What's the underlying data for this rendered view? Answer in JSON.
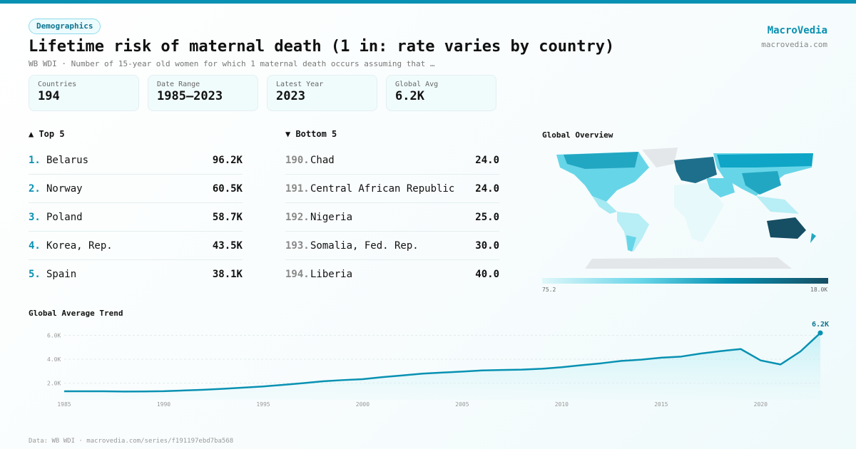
{
  "header": {
    "tag": "Demographics",
    "title": "Lifetime risk of maternal death (1 in: rate varies by country)",
    "subtitle": "WB WDI · Number of 15-year old women for which 1 maternal death occurs assuming that …",
    "brand": "MacroVedia",
    "brand_url": "macrovedia.com"
  },
  "stats": [
    {
      "label": "Countries",
      "value": "194"
    },
    {
      "label": "Date Range",
      "value": "1985–2023"
    },
    {
      "label": "Latest Year",
      "value": "2023"
    },
    {
      "label": "Global Avg",
      "value": "6.2K"
    }
  ],
  "top": {
    "title": "▲ Top 5",
    "items": [
      {
        "rank": "1.",
        "name": "Belarus",
        "value": "96.2K"
      },
      {
        "rank": "2.",
        "name": "Norway",
        "value": "60.5K"
      },
      {
        "rank": "3.",
        "name": "Poland",
        "value": "58.7K"
      },
      {
        "rank": "4.",
        "name": "Korea, Rep.",
        "value": "43.5K"
      },
      {
        "rank": "5.",
        "name": "Spain",
        "value": "38.1K"
      }
    ]
  },
  "bottom": {
    "title": "▼ Bottom 5",
    "items": [
      {
        "rank": "190.",
        "name": "Chad",
        "value": "24.0"
      },
      {
        "rank": "191.",
        "name": "Central African Republic",
        "value": "24.0"
      },
      {
        "rank": "192.",
        "name": "Nigeria",
        "value": "25.0"
      },
      {
        "rank": "193.",
        "name": "Somalia, Fed. Rep.",
        "value": "30.0"
      },
      {
        "rank": "194.",
        "name": "Liberia",
        "value": "40.0"
      }
    ]
  },
  "map": {
    "title": "Global Overview",
    "scale_min": "75.2",
    "scale_max": "18.0K",
    "colors": [
      "#e0f7fa",
      "#67d5e8",
      "#0891b2",
      "#164e63"
    ]
  },
  "trend": {
    "title": "Global Average Trend",
    "last_label": "6.2K"
  },
  "chart_data": {
    "type": "area",
    "title": "Global Average Trend",
    "x": [
      1985,
      1986,
      1987,
      1988,
      1989,
      1990,
      1991,
      1992,
      1993,
      1994,
      1995,
      1996,
      1997,
      1998,
      1999,
      2000,
      2001,
      2002,
      2003,
      2004,
      2005,
      2006,
      2007,
      2008,
      2009,
      2010,
      2011,
      2012,
      2013,
      2014,
      2015,
      2016,
      2017,
      2018,
      2019,
      2020,
      2021,
      2022,
      2023
    ],
    "values": [
      1310,
      1310,
      1310,
      1290,
      1300,
      1320,
      1380,
      1440,
      1520,
      1620,
      1720,
      1850,
      1990,
      2150,
      2250,
      2330,
      2500,
      2640,
      2790,
      2880,
      2960,
      3060,
      3100,
      3130,
      3200,
      3330,
      3500,
      3660,
      3860,
      3960,
      4130,
      4220,
      4480,
      4680,
      4850,
      3900,
      3560,
      4650,
      6200
    ],
    "xticks": [
      "1985",
      "1990",
      "1995",
      "2000",
      "2005",
      "2010",
      "2015",
      "2020"
    ],
    "yticks": [
      "2.0K",
      "4.0K",
      "6.0K"
    ],
    "ylim": [
      0,
      6500
    ],
    "grid": true,
    "color": "#0891b2"
  },
  "footer": "Data: WB WDI · macrovedia.com/series/f191197ebd7ba568"
}
